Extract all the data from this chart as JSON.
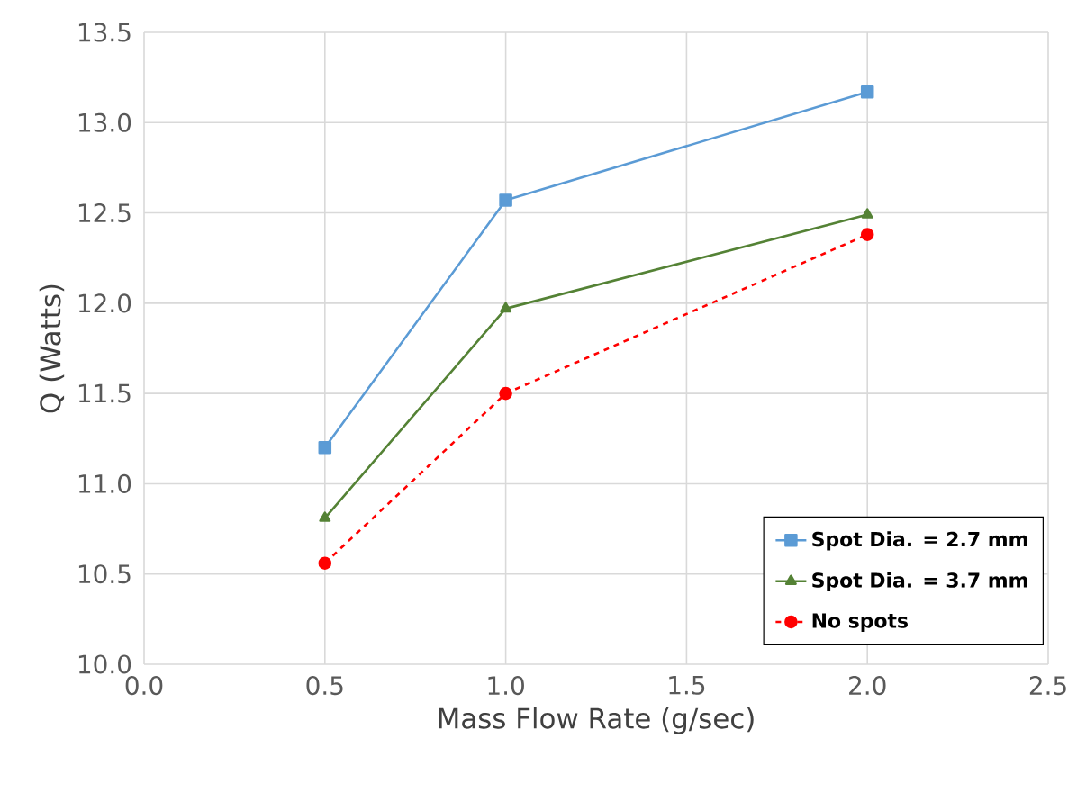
{
  "chart_data": {
    "type": "line",
    "xlabel": "Mass Flow Rate (g/sec)",
    "ylabel": "Q (Watts)",
    "x": [
      0.5,
      1.0,
      2.0
    ],
    "series": [
      {
        "name": "Spot Dia. = 2.7 mm",
        "color": "#5b9bd5",
        "marker": "square",
        "line_style": "solid",
        "values": [
          11.2,
          12.57,
          13.17
        ]
      },
      {
        "name": "Spot Dia. = 3.7 mm",
        "color": "#548235",
        "marker": "triangle",
        "line_style": "solid",
        "values": [
          10.81,
          11.97,
          12.49
        ]
      },
      {
        "name": "No spots",
        "color": "#ff0000",
        "marker": "circle",
        "line_style": "dashed",
        "values": [
          10.56,
          11.5,
          12.38
        ]
      }
    ],
    "xlim": [
      0.0,
      2.5
    ],
    "xticks": [
      {
        "value": 0.0,
        "label": "0.0"
      },
      {
        "value": 0.5,
        "label": "0.5"
      },
      {
        "value": 1.0,
        "label": "1.0"
      },
      {
        "value": 1.5,
        "label": "1.5"
      },
      {
        "value": 2.0,
        "label": "2.0"
      },
      {
        "value": 2.5,
        "label": "2.5"
      }
    ],
    "ylim": [
      10.0,
      13.5
    ],
    "yticks": [
      {
        "value": 10.0,
        "label": "10.0"
      },
      {
        "value": 10.5,
        "label": "10.5"
      },
      {
        "value": 11.0,
        "label": "11.0"
      },
      {
        "value": 11.5,
        "label": "11.5"
      },
      {
        "value": 12.0,
        "label": "12.0"
      },
      {
        "value": 12.5,
        "label": "12.5"
      },
      {
        "value": 13.0,
        "label": "13.0"
      },
      {
        "value": 13.5,
        "label": "13.5"
      }
    ],
    "grid": true,
    "legend": "bottom right"
  }
}
